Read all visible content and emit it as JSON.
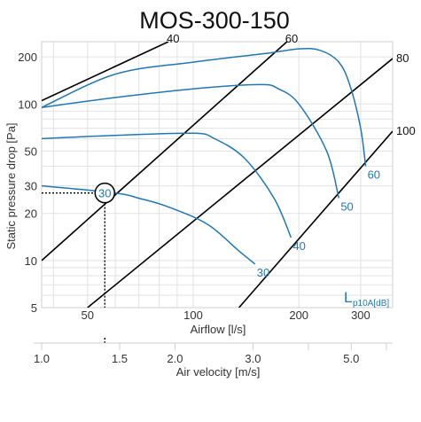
{
  "chart_data": {
    "type": "line",
    "title": "MOS-300-150",
    "xlabel": "Airflow [l/s]",
    "ylabel": "Static pressure drop [Pa]",
    "x_scale": "log",
    "y_scale": "log",
    "xlim": [
      37,
      370
    ],
    "ylim": [
      5,
      250
    ],
    "x_ticks": [
      {
        "value": 50,
        "label": "50"
      },
      {
        "value": 100,
        "label": "100"
      },
      {
        "value": 200,
        "label": "200"
      },
      {
        "value": 300,
        "label": "300"
      }
    ],
    "y_ticks": [
      {
        "value": 5,
        "label": "5"
      },
      {
        "value": 10,
        "label": "10"
      },
      {
        "value": 20,
        "label": "20"
      },
      {
        "value": 30,
        "label": "30"
      },
      {
        "value": 50,
        "label": "50"
      },
      {
        "value": 100,
        "label": "100"
      },
      {
        "value": 200,
        "label": "200"
      }
    ],
    "grid": true,
    "secondary_axis": {
      "label": "Air velocity [m/s]",
      "ticks": [
        {
          "value": 1.0,
          "label": "1.0"
        },
        {
          "value": 1.5,
          "label": "1.5"
        },
        {
          "value": 2.0,
          "label": "2.0"
        },
        {
          "value": 3.0,
          "label": "3.0"
        },
        {
          "value": 5.0,
          "label": "5.0"
        }
      ]
    },
    "iso_lines": [
      {
        "label": "40",
        "x": [
          37,
          85
        ],
        "y": [
          105,
          250
        ]
      },
      {
        "label": "60",
        "x": [
          37,
          185
        ],
        "y": [
          10,
          250
        ]
      },
      {
        "label": "80",
        "x": [
          50,
          370
        ],
        "y": [
          5,
          195
        ]
      },
      {
        "label": "100",
        "x": [
          135,
          370
        ],
        "y": [
          5,
          67
        ]
      }
    ],
    "series": [
      {
        "name": "30",
        "x": [
          37,
          60,
          70,
          85,
          110,
          135,
          150
        ],
        "y": [
          30,
          27,
          25,
          22,
          17,
          11.5,
          9.5
        ]
      },
      {
        "name": "40",
        "x": [
          37,
          60,
          100,
          115,
          140,
          170,
          190
        ],
        "y": [
          60,
          63,
          65,
          60,
          45,
          25,
          14
        ]
      },
      {
        "name": "50",
        "x": [
          37,
          60,
          100,
          155,
          175,
          200,
          240,
          260
        ],
        "y": [
          95,
          110,
          125,
          133,
          125,
          100,
          50,
          25
        ]
      },
      {
        "name": "60",
        "x": [
          37,
          60,
          100,
          160,
          200,
          230,
          260,
          280,
          300,
          310
        ],
        "y": [
          95,
          155,
          185,
          210,
          225,
          220,
          185,
          130,
          70,
          40
        ]
      }
    ],
    "operating_point": {
      "x": 56,
      "y": 27,
      "label": "30"
    },
    "legend_title": "L",
    "legend_subtitle": "p10A[dB]"
  }
}
